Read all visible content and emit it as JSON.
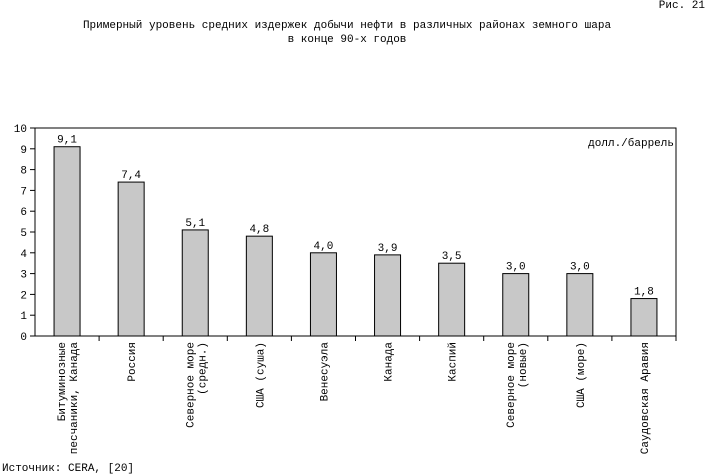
{
  "chart_data": {
    "type": "bar",
    "figure_label": "Рис. 21",
    "title": "Примерный уровень средних издержек добычи нефти в различных районах земного шара",
    "subtitle": "в конце 90-х годов",
    "unit_label": "долл./баррель",
    "source": "Источник: CERA,  [20]",
    "categories": [
      "Битуминозные\nпесчаники, Канада",
      "Россия",
      "Северное море\n(средн.)",
      "США (суша)",
      "Венесуэла",
      "Канада",
      "Каспий",
      "Северное море\n(новые)",
      "США (море)",
      "Саудовская Аравия"
    ],
    "values": [
      9.1,
      7.4,
      5.1,
      4.8,
      4.0,
      3.9,
      3.5,
      3.0,
      3.0,
      1.8
    ],
    "value_labels": [
      "9,1",
      "7,4",
      "5,1",
      "4,8",
      "4,0",
      "3,9",
      "3,5",
      "3,0",
      "3,0",
      "1,8"
    ],
    "color": "#c8c8c8",
    "ylim": [
      0,
      10
    ],
    "yticks": [
      0,
      1,
      2,
      3,
      4,
      5,
      6,
      7,
      8,
      9,
      10
    ]
  }
}
